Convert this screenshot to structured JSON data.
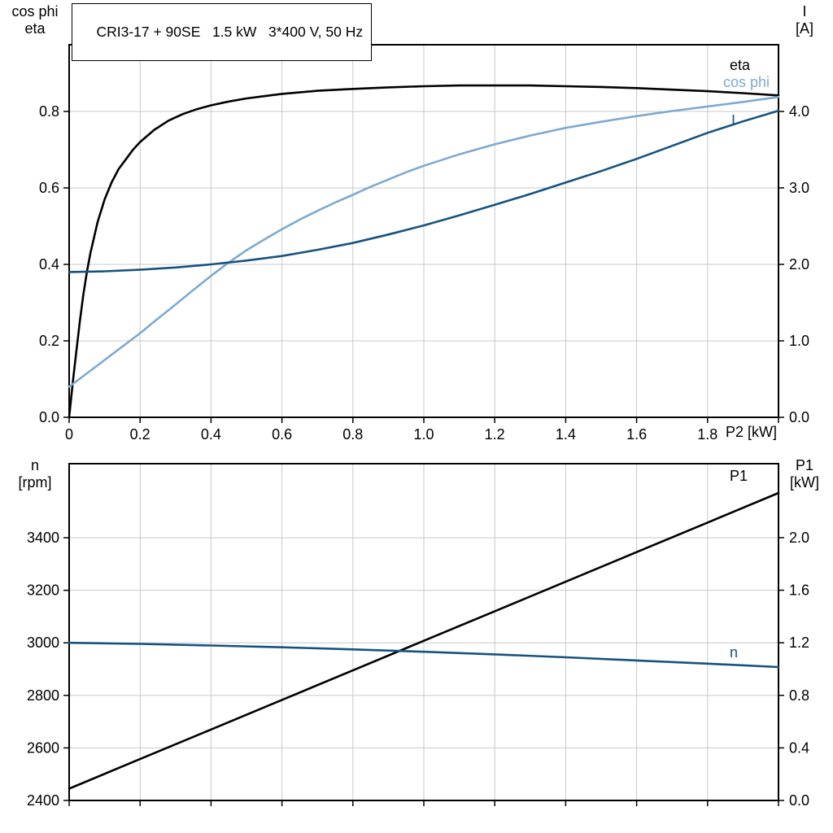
{
  "window": {
    "background": "#ffffff"
  },
  "colors": {
    "black": "#000000",
    "dark_blue": "#17527f",
    "light_blue": "#7fa9cf",
    "grid": "#c9c9c9"
  },
  "chart_data": [
    {
      "type": "line",
      "title": "CRI3-17 + 90SE   1.5 kW   3*400 V, 50 Hz",
      "xlabel": "P2 [kW]",
      "xlim": [
        0,
        2
      ],
      "grid": true,
      "legend_position": "inline-right",
      "x_tick_values": [
        0,
        0.2,
        0.4,
        0.6,
        0.8,
        1.0,
        1.2,
        1.4,
        1.6,
        1.8,
        2.0
      ],
      "x_tick_labels": [
        "0",
        "0.2",
        "0.4",
        "0.6",
        "0.8",
        "1.0",
        "1.2",
        "1.4",
        "1.6",
        "1.8",
        ""
      ],
      "left_axis": {
        "title_lines": [
          "cos phi",
          "eta"
        ],
        "lim": [
          0,
          0.9745
        ],
        "tick_values": [
          0,
          0.2,
          0.4,
          0.6,
          0.8
        ],
        "tick_labels": [
          "0.0",
          "0.2",
          "0.4",
          "0.6",
          "0.8"
        ]
      },
      "right_axis": {
        "title_lines": [
          "I",
          "[A]"
        ],
        "lim": [
          0,
          4.8723
        ],
        "tick_values": [
          0,
          1,
          2,
          3,
          4
        ],
        "tick_labels": [
          "0.0",
          "1.0",
          "2.0",
          "3.0",
          "4.0"
        ]
      },
      "series": [
        {
          "id": "eta",
          "label": "eta",
          "axis": "left",
          "color": "#000000",
          "width": 2.6,
          "points": [
            [
              0,
              0
            ],
            [
              0.01,
              0.09
            ],
            [
              0.02,
              0.17
            ],
            [
              0.03,
              0.25
            ],
            [
              0.04,
              0.32
            ],
            [
              0.05,
              0.38
            ],
            [
              0.06,
              0.43
            ],
            [
              0.08,
              0.51
            ],
            [
              0.1,
              0.57
            ],
            [
              0.12,
              0.615
            ],
            [
              0.14,
              0.65
            ],
            [
              0.16,
              0.675
            ],
            [
              0.18,
              0.7
            ],
            [
              0.2,
              0.72
            ],
            [
              0.24,
              0.752
            ],
            [
              0.28,
              0.776
            ],
            [
              0.32,
              0.793
            ],
            [
              0.36,
              0.806
            ],
            [
              0.4,
              0.816
            ],
            [
              0.45,
              0.826
            ],
            [
              0.5,
              0.834
            ],
            [
              0.55,
              0.84
            ],
            [
              0.6,
              0.846
            ],
            [
              0.7,
              0.854
            ],
            [
              0.8,
              0.859
            ],
            [
              0.9,
              0.863
            ],
            [
              1,
              0.866
            ],
            [
              1.1,
              0.868
            ],
            [
              1.2,
              0.868
            ],
            [
              1.3,
              0.868
            ],
            [
              1.4,
              0.866
            ],
            [
              1.5,
              0.864
            ],
            [
              1.6,
              0.861
            ],
            [
              1.7,
              0.857
            ],
            [
              1.8,
              0.853
            ],
            [
              1.9,
              0.848
            ],
            [
              2,
              0.842
            ]
          ]
        },
        {
          "id": "cos-phi",
          "label": "cos phi",
          "axis": "left",
          "color": "#7fa9cf",
          "width": 2.6,
          "points": [
            [
              0,
              0.08
            ],
            [
              0.05,
              0.115
            ],
            [
              0.1,
              0.15
            ],
            [
              0.15,
              0.185
            ],
            [
              0.2,
              0.22
            ],
            [
              0.25,
              0.258
            ],
            [
              0.3,
              0.295
            ],
            [
              0.35,
              0.333
            ],
            [
              0.4,
              0.37
            ],
            [
              0.45,
              0.405
            ],
            [
              0.5,
              0.437
            ],
            [
              0.55,
              0.465
            ],
            [
              0.6,
              0.492
            ],
            [
              0.65,
              0.517
            ],
            [
              0.7,
              0.54
            ],
            [
              0.75,
              0.562
            ],
            [
              0.8,
              0.582
            ],
            [
              0.85,
              0.603
            ],
            [
              0.9,
              0.622
            ],
            [
              0.95,
              0.641
            ],
            [
              1,
              0.658
            ],
            [
              1.1,
              0.688
            ],
            [
              1.2,
              0.714
            ],
            [
              1.3,
              0.737
            ],
            [
              1.4,
              0.757
            ],
            [
              1.5,
              0.773
            ],
            [
              1.6,
              0.788
            ],
            [
              1.7,
              0.801
            ],
            [
              1.8,
              0.813
            ],
            [
              1.9,
              0.825
            ],
            [
              2,
              0.838
            ]
          ]
        },
        {
          "id": "current",
          "label": "I",
          "axis": "right",
          "color": "#17527f",
          "width": 2.6,
          "points": [
            [
              0,
              1.9
            ],
            [
              0.1,
              1.91
            ],
            [
              0.2,
              1.93
            ],
            [
              0.3,
              1.96
            ],
            [
              0.4,
              2
            ],
            [
              0.5,
              2.05
            ],
            [
              0.6,
              2.11
            ],
            [
              0.7,
              2.19
            ],
            [
              0.8,
              2.28
            ],
            [
              0.9,
              2.39
            ],
            [
              1,
              2.51
            ],
            [
              1.1,
              2.64
            ],
            [
              1.2,
              2.78
            ],
            [
              1.3,
              2.92
            ],
            [
              1.4,
              3.07
            ],
            [
              1.5,
              3.22
            ],
            [
              1.6,
              3.38
            ],
            [
              1.7,
              3.55
            ],
            [
              1.8,
              3.72
            ],
            [
              1.9,
              3.87
            ],
            [
              2,
              4.01
            ]
          ]
        }
      ]
    },
    {
      "type": "line",
      "title": "",
      "xlabel": "",
      "xlim": [
        0,
        2
      ],
      "grid": true,
      "x_tick_values": [
        0,
        0.2,
        0.4,
        0.6,
        0.8,
        1.0,
        1.2,
        1.4,
        1.6,
        1.8,
        2.0
      ],
      "x_tick_labels": [
        "",
        "",
        "",
        "",
        "",
        "",
        "",
        "",
        "",
        "",
        ""
      ],
      "left_axis": {
        "title_lines": [
          "n",
          "[rpm]"
        ],
        "lim": [
          2400,
          3682
        ],
        "tick_values": [
          2400,
          2600,
          2800,
          3000,
          3200,
          3400
        ],
        "tick_labels": [
          "2400",
          "2600",
          "2800",
          "3000",
          "3200",
          "3400"
        ]
      },
      "right_axis": {
        "title_lines": [
          "P1",
          "[kW]"
        ],
        "lim": [
          0,
          2.563
        ],
        "tick_values": [
          0,
          0.4,
          0.8,
          1.2,
          1.6,
          2.0
        ],
        "tick_labels": [
          "0.0",
          "0.4",
          "0.8",
          "1.2",
          "1.6",
          "2.0"
        ]
      },
      "series": [
        {
          "id": "p1",
          "label": "P1",
          "axis": "right",
          "color": "#000000",
          "width": 2.6,
          "points": [
            [
              0,
              0.09
            ],
            [
              0.2,
              0.315
            ],
            [
              0.4,
              0.54
            ],
            [
              0.6,
              0.765
            ],
            [
              0.8,
              0.99
            ],
            [
              1,
              1.215
            ],
            [
              1.2,
              1.44
            ],
            [
              1.4,
              1.665
            ],
            [
              1.6,
              1.89
            ],
            [
              1.8,
              2.115
            ],
            [
              2,
              2.34
            ]
          ]
        },
        {
          "id": "speed",
          "label": "n",
          "axis": "left",
          "color": "#17527f",
          "width": 2.6,
          "points": [
            [
              0,
              3000
            ],
            [
              0.2,
              2996
            ],
            [
              0.4,
              2990
            ],
            [
              0.6,
              2983
            ],
            [
              0.8,
              2975
            ],
            [
              1,
              2966
            ],
            [
              1.2,
              2956
            ],
            [
              1.4,
              2945
            ],
            [
              1.6,
              2933
            ],
            [
              1.8,
              2921
            ],
            [
              2,
              2908
            ]
          ]
        }
      ]
    }
  ]
}
